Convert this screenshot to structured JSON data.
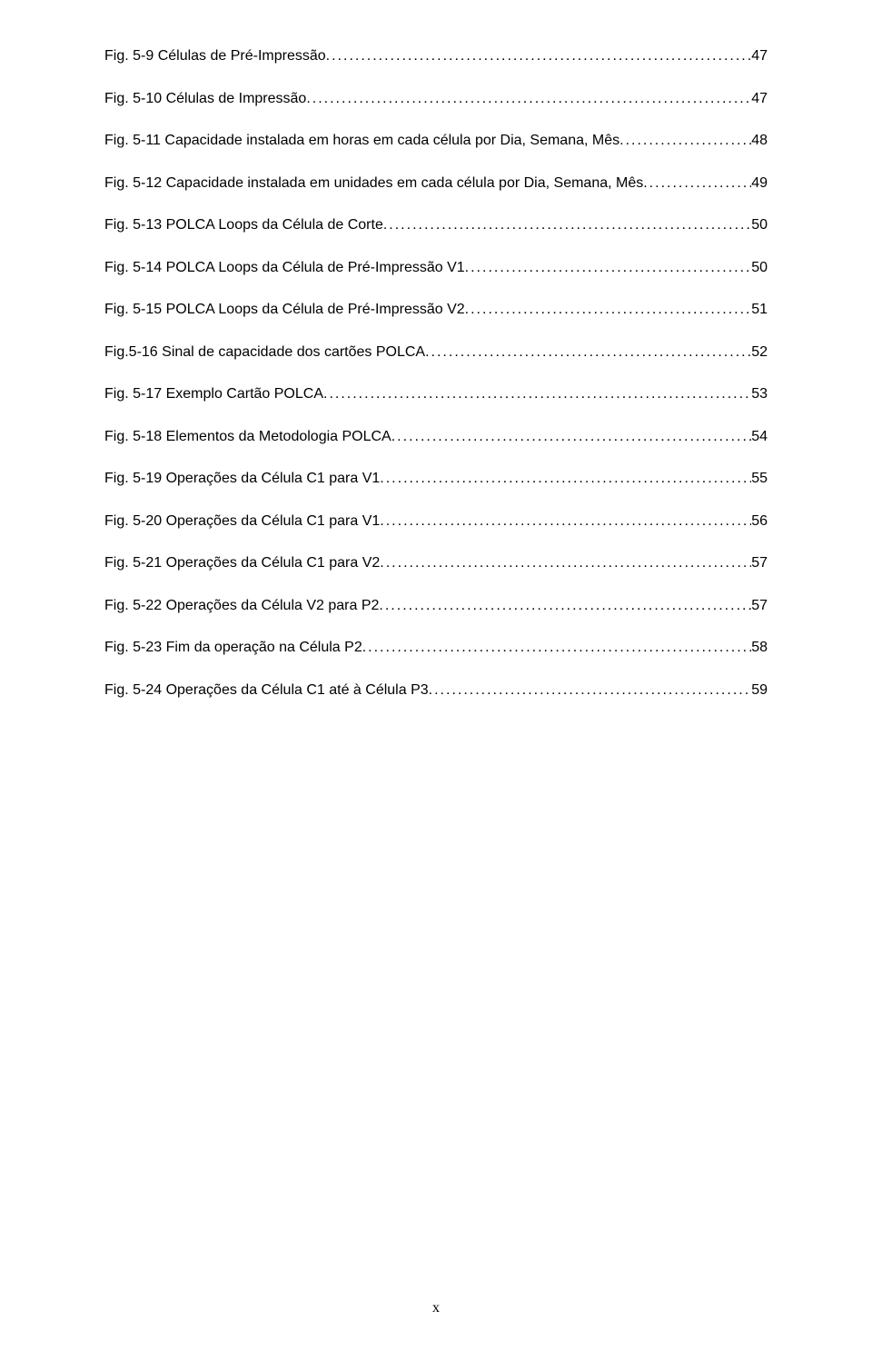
{
  "entries": [
    {
      "label": "Fig. 5-9 Células de Pré-Impressão",
      "page": "47"
    },
    {
      "label": "Fig. 5-10 Células de Impressão",
      "page": "47"
    },
    {
      "label": "Fig. 5-11 Capacidade instalada em horas em cada célula por Dia, Semana, Mês",
      "page": "48"
    },
    {
      "label": "Fig. 5-12 Capacidade instalada em unidades em cada célula por Dia, Semana, Mês",
      "page": "49"
    },
    {
      "label": "Fig. 5-13 POLCA Loops da Célula de Corte",
      "page": "50"
    },
    {
      "label": "Fig. 5-14 POLCA Loops da Célula de Pré-Impressão V1",
      "page": "50"
    },
    {
      "label": "Fig. 5-15 POLCA Loops da Célula de Pré-Impressão V2",
      "page": "51"
    },
    {
      "label": "Fig.5-16 Sinal de capacidade dos cartões POLCA",
      "page": "52"
    },
    {
      "label": "Fig. 5-17 Exemplo Cartão POLCA",
      "page": "53"
    },
    {
      "label": "Fig. 5-18 Elementos da Metodologia POLCA",
      "page": "54"
    },
    {
      "label": "Fig. 5-19 Operações da Célula C1 para V1",
      "page": "55"
    },
    {
      "label": "Fig. 5-20 Operações da Célula C1 para V1",
      "page": "56"
    },
    {
      "label": "Fig. 5-21 Operações da Célula C1 para V2",
      "page": "57"
    },
    {
      "label": "Fig. 5-22 Operações da Célula V2 para P2",
      "page": "57"
    },
    {
      "label": "Fig. 5-23 Fim da operação na Célula P2",
      "page": "58"
    },
    {
      "label": "Fig. 5-24 Operações da Célula C1 até à Célula P3",
      "page": "59"
    }
  ],
  "footer": "x"
}
